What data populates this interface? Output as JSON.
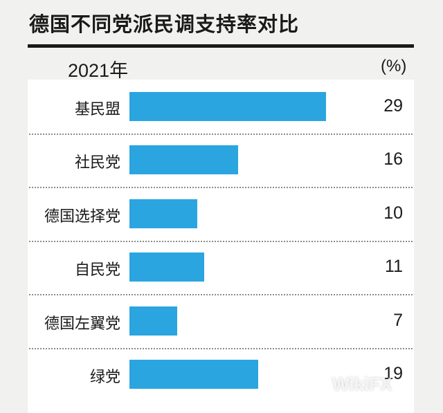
{
  "chart_data": {
    "type": "bar",
    "orientation": "horizontal",
    "title": "德国不同党派民调支持率对比",
    "subtitle": "2021年",
    "unit": "(%)",
    "categories": [
      "基民盟",
      "社民党",
      "德国选择党",
      "自民党",
      "德国左翼党",
      "绿党"
    ],
    "values": [
      29,
      16,
      10,
      11,
      7,
      19
    ],
    "value_labels": [
      "29",
      "16",
      "10",
      "11",
      "7",
      "19"
    ],
    "bar_color": "#2aa5e0",
    "grid": false
  },
  "watermark": "WikiFX"
}
